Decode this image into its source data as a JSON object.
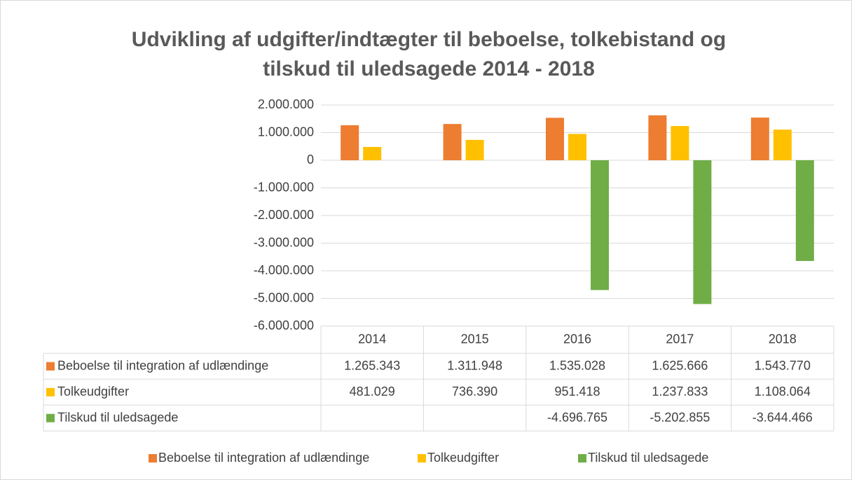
{
  "chart_data": {
    "type": "bar",
    "title": [
      "Udvikling af udgifter/indtægter til beboelse, tolkebistand og",
      "tilskud til uledsagede 2014 - 2018"
    ],
    "categories": [
      "2014",
      "2015",
      "2016",
      "2017",
      "2018"
    ],
    "series": [
      {
        "name": "Beboelse til integration af udlændinge",
        "color": "#ed7d31",
        "values": [
          1265343,
          1311948,
          1535028,
          1625666,
          1543770
        ],
        "value_labels": [
          "1.265.343",
          "1.311.948",
          "1.535.028",
          "1.625.666",
          "1.543.770"
        ]
      },
      {
        "name": "Tolkeudgifter",
        "color": "#ffc000",
        "values": [
          481029,
          736390,
          951418,
          1237833,
          1108064
        ],
        "value_labels": [
          "481.029",
          "736.390",
          "951.418",
          "1.237.833",
          "1.108.064"
        ]
      },
      {
        "name": "Tilskud til uledsagede",
        "color": "#70ad47",
        "values": [
          null,
          null,
          -4696765,
          -5202855,
          -3644466
        ],
        "value_labels": [
          null,
          null,
          "-4.696.765",
          "-5.202.855",
          "-3.644.466"
        ]
      }
    ],
    "ylim": [
      -6000000,
      2000000
    ],
    "yticks": [
      {
        "value": -6000000,
        "label": "-6.000.000"
      },
      {
        "value": -5000000,
        "label": "-5.000.000"
      },
      {
        "value": -4000000,
        "label": "-4.000.000"
      },
      {
        "value": -3000000,
        "label": "-3.000.000"
      },
      {
        "value": -2000000,
        "label": "-2.000.000"
      },
      {
        "value": -1000000,
        "label": "-1.000.000"
      },
      0,
      {
        "value": 1000000,
        "label": "1.000.000"
      },
      {
        "value": 2000000,
        "label": "2.000.000"
      }
    ],
    "grid": true,
    "legend": "bottom"
  }
}
